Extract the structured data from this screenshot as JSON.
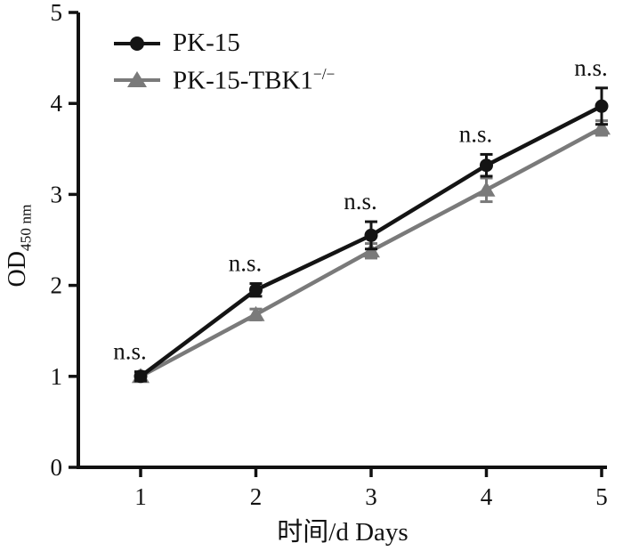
{
  "chart_data": {
    "type": "line",
    "title": "",
    "xlabel": "时间/d Days",
    "ylabel": "OD",
    "ylabel_subscript": "450 nm",
    "x": [
      1,
      2,
      3,
      4,
      5
    ],
    "xticks": [
      "1",
      "2",
      "3",
      "4",
      "5"
    ],
    "ylim": [
      0,
      5
    ],
    "yticks": [
      "0",
      "1",
      "2",
      "3",
      "4",
      "5"
    ],
    "grid": false,
    "legend_position": "top-left-inside",
    "series": [
      {
        "name": "PK-15",
        "name_superscript": "",
        "marker": "circle",
        "color": "#141414",
        "values": [
          1.0,
          1.95,
          2.55,
          3.32,
          3.97
        ],
        "errors": [
          0.05,
          0.07,
          0.15,
          0.12,
          0.2
        ]
      },
      {
        "name": "PK-15-TBK1",
        "name_superscript": "−/−",
        "marker": "triangle",
        "color": "#7a7a7a",
        "values": [
          1.0,
          1.68,
          2.38,
          3.05,
          3.73
        ],
        "errors": [
          0.05,
          0.06,
          0.08,
          0.13,
          0.08
        ]
      }
    ],
    "annotations": [
      {
        "text": "n.s.",
        "x": 1
      },
      {
        "text": "n.s.",
        "x": 2
      },
      {
        "text": "n.s.",
        "x": 3
      },
      {
        "text": "n.s.",
        "x": 4
      },
      {
        "text": "n.s.",
        "x": 5
      }
    ]
  }
}
